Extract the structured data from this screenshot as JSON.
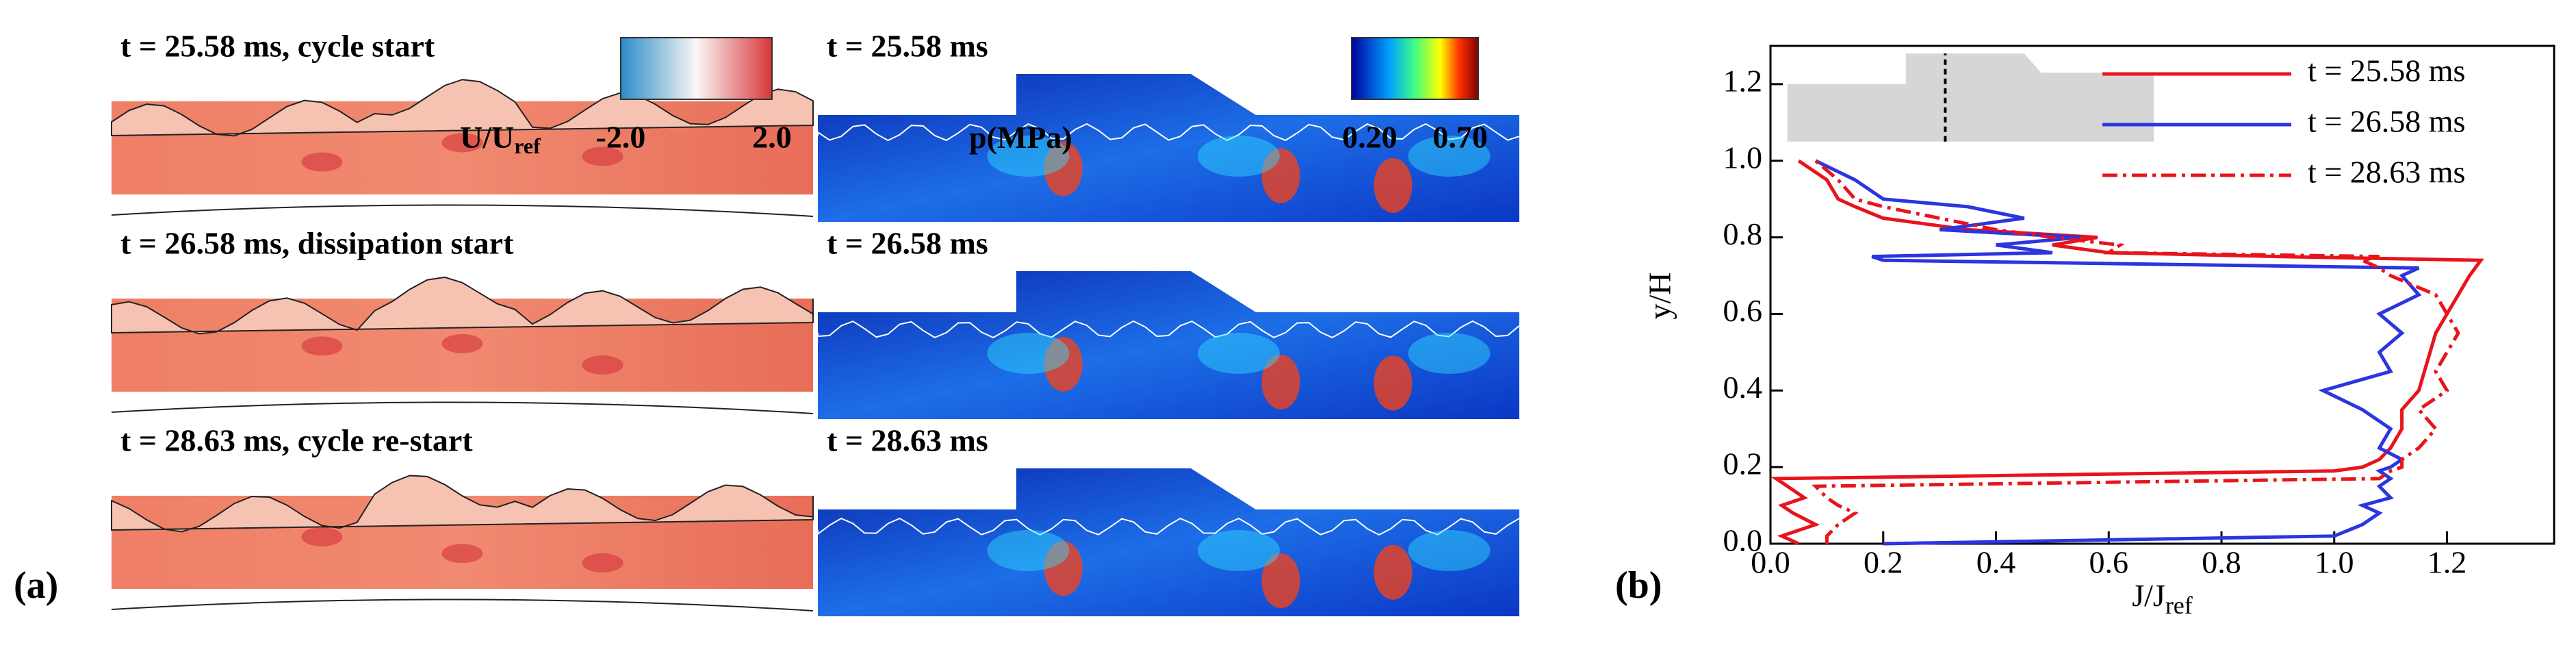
{
  "panel_a": {
    "label": "(a)",
    "rows": [
      {
        "left": "t = 25.58 ms, cycle start",
        "right": "t = 25.58 ms"
      },
      {
        "left": "t = 26.58 ms, dissipation start",
        "right": "t = 26.58 ms"
      },
      {
        "left": "t = 28.63 ms, cycle re-start",
        "right": "t = 28.63 ms"
      }
    ],
    "colorbars": [
      {
        "label": "U/U",
        "label_sub": "ref",
        "lim": [
          -2,
          2
        ],
        "ticks": [
          {
            "value": -2,
            "label": "-2.0"
          },
          {
            "value": 2,
            "label": "2.0"
          }
        ]
      },
      {
        "label": "p(MPa)",
        "lim": [
          0.1,
          0.8
        ],
        "ticks": [
          {
            "value": 0.2,
            "label": "0.20"
          },
          {
            "value": 0.7,
            "label": "0.70"
          }
        ]
      }
    ]
  },
  "chart_data": {
    "type": "line",
    "label": "(b)",
    "xlabel": "J/J",
    "xlabel_sub": "ref",
    "ylabel": "y/H",
    "xlim": [
      0,
      1.39
    ],
    "ylim": [
      0,
      1.3
    ],
    "xticks": [
      {
        "value": 0,
        "label": "0.0"
      },
      0.2,
      0.4,
      0.6,
      0.8,
      {
        "value": 1,
        "label": "1.0"
      },
      1.2
    ],
    "yticks": [
      {
        "value": 0,
        "label": "0.0"
      },
      0.2,
      0.4,
      0.6,
      0.8,
      {
        "value": 1,
        "label": "1.0"
      },
      1.2
    ],
    "y": [
      0,
      0.02,
      0.05,
      0.08,
      0.1,
      0.12,
      0.15,
      0.17,
      0.19,
      0.2,
      0.22,
      0.25,
      0.3,
      0.35,
      0.4,
      0.45,
      0.5,
      0.55,
      0.6,
      0.65,
      0.7,
      0.72,
      0.74,
      0.75,
      0.76,
      0.78,
      0.8,
      0.82,
      0.85,
      0.88,
      0.9,
      0.95,
      1.0
    ],
    "series": [
      {
        "name": "t = 25.58 ms",
        "color": "#e8141c",
        "dash": "solid",
        "values": [
          0.05,
          0.02,
          0.08,
          0.04,
          0.02,
          0.06,
          0.03,
          0.01,
          1.0,
          1.05,
          1.08,
          1.1,
          1.12,
          1.12,
          1.15,
          1.16,
          1.17,
          1.18,
          1.2,
          1.22,
          1.24,
          1.25,
          1.26,
          0.9,
          0.6,
          0.5,
          0.58,
          0.35,
          0.2,
          0.15,
          0.12,
          0.1,
          0.05
        ]
      },
      {
        "name": "t = 26.58 ms",
        "color": "#2b35e0",
        "dash": "solid",
        "values": [
          0.2,
          1.0,
          1.05,
          1.08,
          1.05,
          1.1,
          1.08,
          1.1,
          1.08,
          1.1,
          1.12,
          1.08,
          1.1,
          1.05,
          0.98,
          1.1,
          1.08,
          1.12,
          1.08,
          1.15,
          1.12,
          1.15,
          0.2,
          0.18,
          0.5,
          0.4,
          0.55,
          0.3,
          0.45,
          0.35,
          0.2,
          0.15,
          0.08
        ]
      },
      {
        "name": "t = 28.63 ms",
        "color": "#e8141c",
        "dash": "dashdot",
        "values": [
          0.1,
          0.1,
          0.12,
          0.15,
          0.12,
          0.1,
          0.08,
          1.08,
          1.1,
          1.12,
          1.12,
          1.15,
          1.18,
          1.15,
          1.2,
          1.18,
          1.2,
          1.22,
          1.2,
          1.18,
          1.1,
          1.08,
          1.05,
          1.08,
          0.6,
          0.62,
          0.5,
          0.4,
          0.3,
          0.2,
          0.15,
          0.12,
          0.08
        ]
      }
    ]
  }
}
